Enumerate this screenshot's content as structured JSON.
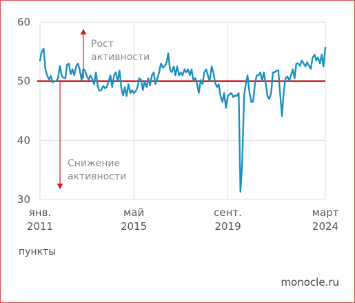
{
  "chart_data": {
    "type": "line",
    "yticks": [
      30,
      40,
      50,
      60
    ],
    "ylim": [
      30,
      60
    ],
    "xlim": [
      2011.0,
      2024.17
    ],
    "xticks": [
      {
        "x": 2011.0,
        "line1": "янв.",
        "line2": "2011"
      },
      {
        "x": 2015.33,
        "line1": "май",
        "line2": "2015"
      },
      {
        "x": 2019.67,
        "line1": "сент.",
        "line2": "2019"
      },
      {
        "x": 2024.17,
        "line1": "март",
        "line2": "2024"
      }
    ],
    "reference_line": {
      "y": 50,
      "color": "#d31a1a"
    },
    "annotations": {
      "up": [
        "Рост",
        "активности"
      ],
      "down": [
        "Снижение",
        "активности"
      ]
    },
    "unit_label": "пункты",
    "series": [
      {
        "color": "#1b8fbf",
        "values": [
          [
            2011.0,
            53.5
          ],
          [
            2011.08,
            55.0
          ],
          [
            2011.17,
            55.5
          ],
          [
            2011.25,
            52.0
          ],
          [
            2011.33,
            51.0
          ],
          [
            2011.42,
            50.3
          ],
          [
            2011.5,
            50.9
          ],
          [
            2011.58,
            49.8
          ],
          [
            2011.67,
            50.0
          ],
          [
            2011.75,
            50.0
          ],
          [
            2011.83,
            50.5
          ],
          [
            2011.92,
            52.6
          ],
          [
            2012.0,
            51.0
          ],
          [
            2012.08,
            50.6
          ],
          [
            2012.17,
            50.5
          ],
          [
            2012.25,
            52.8
          ],
          [
            2012.33,
            53.0
          ],
          [
            2012.42,
            51.2
          ],
          [
            2012.5,
            52.0
          ],
          [
            2012.58,
            51.0
          ],
          [
            2012.67,
            52.5
          ],
          [
            2012.75,
            53.0
          ],
          [
            2012.83,
            52.0
          ],
          [
            2012.92,
            50.2
          ],
          [
            2013.0,
            52.0
          ],
          [
            2013.08,
            51.8
          ],
          [
            2013.17,
            50.8
          ],
          [
            2013.25,
            50.3
          ],
          [
            2013.33,
            51.0
          ],
          [
            2013.42,
            50.3
          ],
          [
            2013.5,
            49.5
          ],
          [
            2013.58,
            51.5
          ],
          [
            2013.67,
            49.0
          ],
          [
            2013.75,
            48.4
          ],
          [
            2013.83,
            48.5
          ],
          [
            2013.92,
            49.2
          ],
          [
            2014.0,
            48.8
          ],
          [
            2014.08,
            49.0
          ],
          [
            2014.17,
            50.0
          ],
          [
            2014.25,
            51.0
          ],
          [
            2014.33,
            49.0
          ],
          [
            2014.42,
            51.0
          ],
          [
            2014.5,
            51.5
          ],
          [
            2014.58,
            50.0
          ],
          [
            2014.67,
            51.8
          ],
          [
            2014.75,
            49.0
          ],
          [
            2014.83,
            47.6
          ],
          [
            2014.92,
            49.0
          ],
          [
            2015.0,
            47.5
          ],
          [
            2015.08,
            49.5
          ],
          [
            2015.17,
            48.0
          ],
          [
            2015.25,
            48.5
          ],
          [
            2015.33,
            48.0
          ],
          [
            2015.42,
            48.3
          ],
          [
            2015.5,
            49.0
          ],
          [
            2015.58,
            50.5
          ],
          [
            2015.67,
            50.2
          ],
          [
            2015.75,
            48.5
          ],
          [
            2015.83,
            50.0
          ],
          [
            2015.92,
            49.0
          ],
          [
            2016.0,
            50.5
          ],
          [
            2016.08,
            49.3
          ],
          [
            2016.17,
            51.0
          ],
          [
            2016.25,
            51.5
          ],
          [
            2016.33,
            49.5
          ],
          [
            2016.42,
            50.5
          ],
          [
            2016.5,
            51.5
          ],
          [
            2016.58,
            53.0
          ],
          [
            2016.67,
            52.3
          ],
          [
            2016.75,
            52.5
          ],
          [
            2016.83,
            53.0
          ],
          [
            2016.92,
            54.7
          ],
          [
            2017.0,
            52.0
          ],
          [
            2017.08,
            51.5
          ],
          [
            2017.17,
            52.5
          ],
          [
            2017.25,
            51.0
          ],
          [
            2017.33,
            52.5
          ],
          [
            2017.42,
            51.0
          ],
          [
            2017.5,
            51.5
          ],
          [
            2017.58,
            51.0
          ],
          [
            2017.67,
            52.0
          ],
          [
            2017.75,
            51.5
          ],
          [
            2017.83,
            52.0
          ],
          [
            2017.92,
            51.0
          ],
          [
            2018.0,
            52.0
          ],
          [
            2018.08,
            50.2
          ],
          [
            2018.17,
            50.5
          ],
          [
            2018.25,
            49.5
          ],
          [
            2018.33,
            48.0
          ],
          [
            2018.42,
            50.2
          ],
          [
            2018.5,
            49.5
          ],
          [
            2018.58,
            51.5
          ],
          [
            2018.67,
            52.0
          ],
          [
            2018.75,
            51.0
          ],
          [
            2018.83,
            50.0
          ],
          [
            2018.92,
            52.5
          ],
          [
            2019.0,
            51.5
          ],
          [
            2019.08,
            49.8
          ],
          [
            2019.17,
            49.0
          ],
          [
            2019.25,
            49.5
          ],
          [
            2019.33,
            47.5
          ],
          [
            2019.42,
            46.5
          ],
          [
            2019.5,
            48.0
          ],
          [
            2019.58,
            45.5
          ],
          [
            2019.67,
            47.5
          ],
          [
            2019.75,
            47.8
          ],
          [
            2019.83,
            48.0
          ],
          [
            2019.92,
            47.3
          ],
          [
            2020.0,
            47.6
          ],
          [
            2020.08,
            47.5
          ],
          [
            2020.17,
            48.0
          ],
          [
            2020.25,
            31.3
          ],
          [
            2020.33,
            36.0
          ],
          [
            2020.42,
            47.5
          ],
          [
            2020.5,
            49.5
          ],
          [
            2020.58,
            51.0
          ],
          [
            2020.67,
            48.0
          ],
          [
            2020.75,
            46.5
          ],
          [
            2020.83,
            46.5
          ],
          [
            2020.92,
            49.5
          ],
          [
            2021.0,
            51.0
          ],
          [
            2021.08,
            51.0
          ],
          [
            2021.17,
            51.5
          ],
          [
            2021.25,
            50.0
          ],
          [
            2021.33,
            51.5
          ],
          [
            2021.42,
            49.5
          ],
          [
            2021.5,
            47.5
          ],
          [
            2021.58,
            47.0
          ],
          [
            2021.67,
            48.0
          ],
          [
            2021.75,
            51.5
          ],
          [
            2021.83,
            51.5
          ],
          [
            2021.92,
            51.8
          ],
          [
            2022.0,
            51.8
          ],
          [
            2022.08,
            48.0
          ],
          [
            2022.17,
            44.1
          ],
          [
            2022.25,
            48.2
          ],
          [
            2022.33,
            50.5
          ],
          [
            2022.42,
            50.8
          ],
          [
            2022.5,
            50.0
          ],
          [
            2022.58,
            51.0
          ],
          [
            2022.67,
            52.0
          ],
          [
            2022.75,
            50.5
          ],
          [
            2022.83,
            53.0
          ],
          [
            2022.92,
            53.0
          ],
          [
            2023.0,
            52.6
          ],
          [
            2023.08,
            53.5
          ],
          [
            2023.17,
            53.0
          ],
          [
            2023.25,
            52.5
          ],
          [
            2023.33,
            53.2
          ],
          [
            2023.42,
            52.6
          ],
          [
            2023.5,
            52.1
          ],
          [
            2023.58,
            54.0
          ],
          [
            2023.67,
            54.5
          ],
          [
            2023.75,
            53.5
          ],
          [
            2023.83,
            54.0
          ],
          [
            2023.92,
            53.0
          ],
          [
            2024.0,
            54.5
          ],
          [
            2024.08,
            52.5
          ],
          [
            2024.17,
            55.7
          ]
        ]
      }
    ]
  },
  "footer": {
    "brand": "monocle.ru"
  }
}
